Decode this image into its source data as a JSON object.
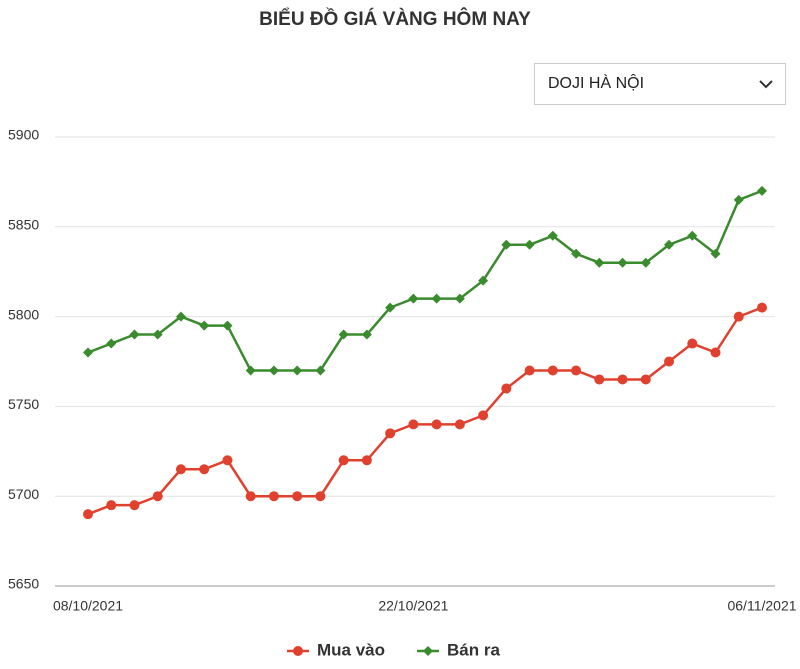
{
  "chart_data": {
    "type": "line",
    "title": "BIỂU ĐỒ GIÁ VÀNG HÔM NAY",
    "categories": [
      "08/10/2021",
      null,
      null,
      null,
      null,
      null,
      null,
      null,
      null,
      null,
      null,
      null,
      null,
      null,
      "22/10/2021",
      null,
      null,
      null,
      null,
      null,
      null,
      null,
      null,
      null,
      null,
      null,
      null,
      null,
      null,
      "06/11/2021"
    ],
    "series": [
      {
        "name": "Mua vào",
        "color": "#e0412f",
        "marker": "circle",
        "values": [
          5690,
          5695,
          5695,
          5700,
          5715,
          5715,
          5720,
          5700,
          5700,
          5700,
          5700,
          5720,
          5720,
          5735,
          5740,
          5740,
          5740,
          5745,
          5760,
          5770,
          5770,
          5770,
          5765,
          5765,
          5765,
          5775,
          5785,
          5780,
          5800,
          5805
        ]
      },
      {
        "name": "Bán ra",
        "color": "#3a8a2e",
        "marker": "diamond",
        "values": [
          5780,
          5785,
          5790,
          5790,
          5800,
          5795,
          5795,
          5770,
          5770,
          5770,
          5770,
          5790,
          5790,
          5805,
          5810,
          5810,
          5810,
          5820,
          5840,
          5840,
          5845,
          5835,
          5830,
          5830,
          5830,
          5840,
          5845,
          5835,
          5865,
          5870
        ]
      }
    ],
    "ylim": [
      5650,
      5900
    ],
    "yticks": [
      5650,
      5700,
      5750,
      5800,
      5850,
      5900
    ],
    "grid": true,
    "legend": "bottom"
  },
  "dropdown": {
    "selected": "DOJI HÀ NỘI"
  }
}
